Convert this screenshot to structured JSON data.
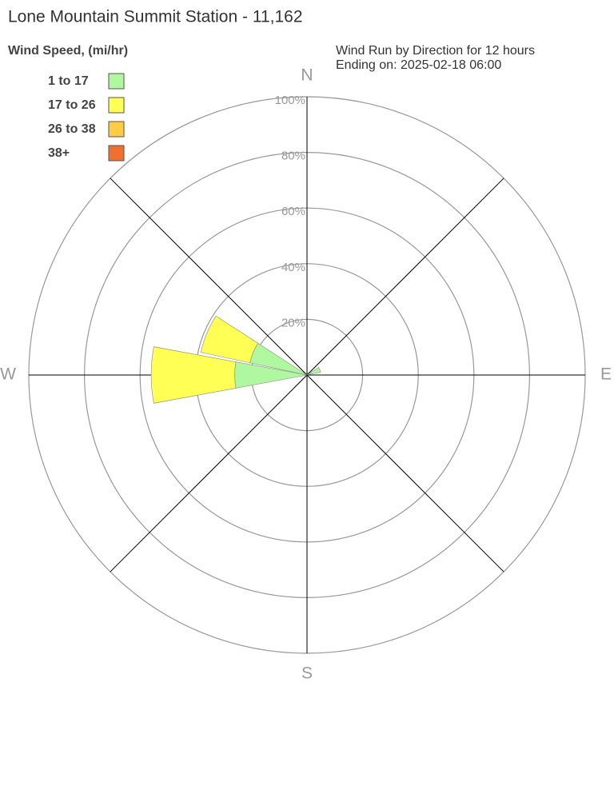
{
  "chart_data": {
    "type": "wind_rose",
    "title": "Lone Mountain Summit Station - 11,162",
    "subtitle": [
      "Wind Run by Direction for 12 hours",
      "Ending on: 2025-02-18 06:00"
    ],
    "legend_title": "Wind Speed, (mi/hr)",
    "legend": "upper left",
    "grid": true,
    "categories": [
      "N",
      null,
      null,
      null,
      "E",
      null,
      null,
      null,
      "S",
      null,
      null,
      null,
      "W",
      null,
      null,
      null
    ],
    "rlim": [
      0,
      100
    ],
    "rticks": [
      {
        "value": 20,
        "label": "20%"
      },
      {
        "value": 40,
        "label": "40%"
      },
      {
        "value": 60,
        "label": "60%"
      },
      {
        "value": 80,
        "label": "80%"
      },
      {
        "value": 100,
        "label": "100%"
      }
    ],
    "series": [
      {
        "name": "1 to 17",
        "color": "#b0f8a0",
        "values": [
          0,
          0,
          0,
          5,
          0,
          0,
          0,
          0,
          0,
          0,
          0,
          0,
          26,
          21,
          0,
          0
        ]
      },
      {
        "name": "17 to 26",
        "color": "#ffff55",
        "values": [
          0,
          0,
          0,
          0,
          0,
          0,
          0,
          0,
          0,
          0,
          0,
          0,
          30,
          18,
          0,
          0
        ]
      },
      {
        "name": "26 to 38",
        "color": "#ffcc44",
        "values": [
          0,
          0,
          0,
          0,
          0,
          0,
          0,
          0,
          0,
          0,
          0,
          0,
          0,
          0,
          0,
          0
        ]
      },
      {
        "name": "38+",
        "color": "#f07030",
        "values": [
          0,
          0,
          0,
          0,
          0,
          0,
          0,
          0,
          0,
          0,
          0,
          0,
          0,
          0,
          0,
          0
        ]
      }
    ]
  }
}
